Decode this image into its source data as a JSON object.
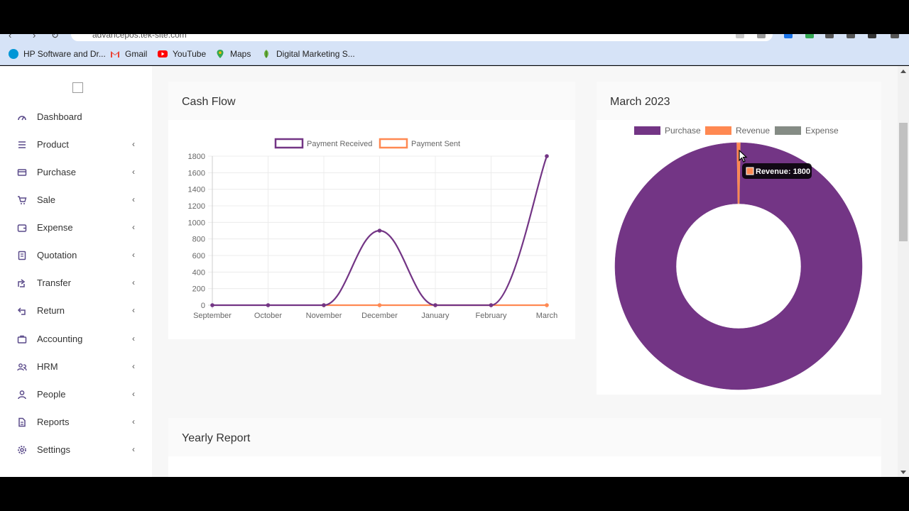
{
  "browser": {
    "url": "advancepos.tek-site.com",
    "bookmarks": [
      {
        "label": "HP Software and Dr...",
        "icon": "hp-icon"
      },
      {
        "label": "Gmail",
        "icon": "gmail-icon"
      },
      {
        "label": "YouTube",
        "icon": "youtube-icon"
      },
      {
        "label": "Maps",
        "icon": "maps-icon"
      },
      {
        "label": "Digital Marketing S...",
        "icon": "leaf-icon"
      }
    ]
  },
  "sidebar": {
    "items": [
      {
        "label": "Dashboard",
        "icon": "dashboard-icon",
        "chevron": ""
      },
      {
        "label": "Product",
        "icon": "list-icon",
        "chevron": "‹"
      },
      {
        "label": "Purchase",
        "icon": "card-icon",
        "chevron": "‹"
      },
      {
        "label": "Sale",
        "icon": "cart-icon",
        "chevron": "‹"
      },
      {
        "label": "Expense",
        "icon": "wallet-icon",
        "chevron": "‹"
      },
      {
        "label": "Quotation",
        "icon": "document-icon",
        "chevron": "‹"
      },
      {
        "label": "Transfer",
        "icon": "share-icon",
        "chevron": "‹"
      },
      {
        "label": "Return",
        "icon": "return-icon",
        "chevron": "‹"
      },
      {
        "label": "Accounting",
        "icon": "briefcase-icon",
        "chevron": "‹"
      },
      {
        "label": "HRM",
        "icon": "user-group-icon",
        "chevron": "‹"
      },
      {
        "label": "People",
        "icon": "user-icon",
        "chevron": "‹"
      },
      {
        "label": "Reports",
        "icon": "report-icon",
        "chevron": "‹"
      },
      {
        "label": "Settings",
        "icon": "gear-icon",
        "chevron": "‹"
      }
    ]
  },
  "cash_flow": {
    "title": "Cash Flow"
  },
  "donut": {
    "title": "March 2023",
    "tooltip": "Revenue: 1800"
  },
  "yearly": {
    "title": "Yearly Report"
  },
  "colors": {
    "purchase": "#733585",
    "revenue": "#ff8952",
    "expense": "#858c85",
    "payment_received": "#733585",
    "payment_sent": "#ff8952"
  },
  "chart_data": [
    {
      "type": "line",
      "categories": [
        "September",
        "October",
        "November",
        "December",
        "January",
        "February",
        "March"
      ],
      "series": [
        {
          "name": "Payment Received",
          "values": [
            0,
            0,
            0,
            900,
            0,
            0,
            1800
          ]
        },
        {
          "name": "Payment Sent",
          "values": [
            null,
            null,
            0,
            0,
            0,
            0,
            0
          ]
        }
      ],
      "ylim": [
        0,
        1800
      ],
      "yticks": [
        0,
        200,
        400,
        600,
        800,
        1000,
        1200,
        1400,
        1600,
        1800
      ],
      "legend": "top",
      "grid": true
    },
    {
      "type": "pie",
      "labels": [
        "Purchase",
        "Revenue",
        "Expense"
      ],
      "values": [
        325000,
        1800,
        0
      ],
      "legend": "top"
    }
  ]
}
